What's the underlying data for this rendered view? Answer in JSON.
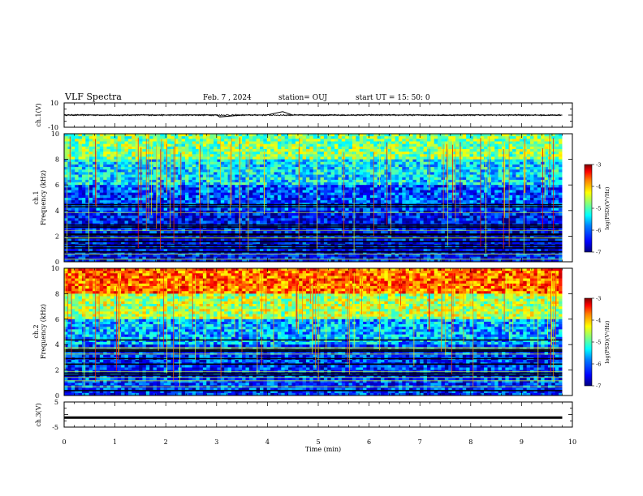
{
  "header": {
    "title": "VLF Spectra",
    "date": "Feb. 7 , 2024",
    "station": "station= OUJ",
    "start": "start UT =   15: 50: 0"
  },
  "colors": {
    "colormap": [
      "#00007f",
      "#0000ff",
      "#0080ff",
      "#00ffff",
      "#80ff80",
      "#ffff00",
      "#ff8000",
      "#ff0000",
      "#7f0000"
    ]
  },
  "chart_data": [
    {
      "type": "line",
      "name": "ch1-waveform",
      "ylabel": "ch.1(V)",
      "ylim": [
        -10,
        10
      ],
      "y_tick_labels": [
        "10",
        "-10"
      ],
      "x": [
        0,
        0.5,
        1,
        1.5,
        2,
        2.5,
        3,
        3.06,
        3.5,
        4,
        4.3,
        4.5,
        5,
        5.5,
        6,
        6.5,
        7,
        7.5,
        8,
        8.5,
        9,
        9.5,
        9.8
      ],
      "y": [
        0,
        0.1,
        -0.1,
        0.1,
        0,
        0.2,
        0.1,
        -1.5,
        0,
        0.1,
        2.8,
        0,
        0.1,
        -0.1,
        0.1,
        0,
        0.1,
        -0.1,
        0.1,
        0,
        0.1,
        -0.1,
        0
      ]
    },
    {
      "type": "heatmap",
      "name": "ch1-spectrogram",
      "ylabel": "Frequency (kHz)",
      "ylabel2": "ch.1",
      "ylim": [
        0,
        10
      ],
      "y_tick_labels": [
        "0",
        "2",
        "4",
        "6",
        "8",
        "10"
      ],
      "dominant_level_by_frequency_kHz": {
        "0-4": -6.5,
        "4-6": -6.2,
        "6-8": -5.6,
        "8-10": -5.0
      },
      "colorbar": {
        "label": "log(PSD)(V²/Hz)",
        "range": [
          -7,
          -3
        ],
        "tick_labels": [
          "-3",
          "-4",
          "-5",
          "-6",
          "-7"
        ]
      }
    },
    {
      "type": "heatmap",
      "name": "ch2-spectrogram",
      "ylabel": "Frequency (kHz)",
      "ylabel2": "ch.2",
      "ylim": [
        0,
        10
      ],
      "y_tick_labels": [
        "0",
        "2",
        "4",
        "6",
        "8",
        "10"
      ],
      "dominant_level_by_frequency_kHz": {
        "0-4": -6.3,
        "4-6": -5.8,
        "6-8": -4.8,
        "8-10": -3.9
      },
      "colorbar": {
        "label": "log(PSD)(V²/Hz)",
        "range": [
          -7,
          -3
        ],
        "tick_labels": [
          "-3",
          "-4",
          "-5",
          "-6",
          "-7"
        ]
      }
    },
    {
      "type": "line",
      "name": "ch3-waveform",
      "ylabel": "ch.3(V)",
      "ylim": [
        -5,
        5
      ],
      "y_tick_labels": [
        "5",
        "-5"
      ],
      "x": [
        0,
        9.8
      ],
      "y": [
        -1.2,
        -1.2
      ]
    }
  ],
  "x_axis": {
    "label": "Time (min)",
    "range": [
      0,
      10
    ],
    "tick_labels": [
      "0",
      "1",
      "2",
      "3",
      "4",
      "5",
      "6",
      "7",
      "8",
      "9",
      "10"
    ]
  }
}
